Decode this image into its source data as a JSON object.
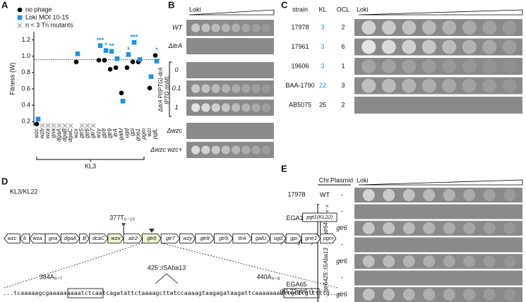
{
  "panel_labels": [
    "A",
    "B",
    "C",
    "D",
    "E"
  ],
  "chart_data": {
    "type": "scatter",
    "y_label": "Fitness (W)",
    "group_label": "KL3",
    "categories": [
      "wzc",
      "wzb",
      "wza",
      "gna",
      "dgaA",
      "dgaB",
      "dgaC",
      "wzx",
      "gtr5",
      "gtr6",
      "gtr7",
      "wzy",
      "gtr8",
      "gtr9",
      "itrA",
      "galU",
      "ugd",
      "gpi",
      "gne1",
      "pgm",
      "wzi",
      "pglL"
    ],
    "series": [
      {
        "name": "no phage",
        "color": "#000000",
        "marker": "circle",
        "values": [
          0.17,
          null,
          null,
          null,
          null,
          null,
          null,
          0.93,
          null,
          null,
          null,
          0.95,
          0.95,
          0.84,
          0.86,
          0.55,
          0.86,
          0.93,
          0.93,
          null,
          0.61,
          1.01
        ]
      },
      {
        "name": "Loki MOI 10-15",
        "color": "#1e90e8",
        "marker": "square",
        "values": [
          0.23,
          null,
          null,
          null,
          null,
          null,
          null,
          1.03,
          null,
          null,
          null,
          1.13,
          1.07,
          1.06,
          0.97,
          0.45,
          1.02,
          1.17,
          0.96,
          null,
          0.75,
          0.94
        ]
      },
      {
        "name": "n < 3 Tn mutants",
        "color": "#aaaaaa",
        "marker": "x",
        "values": [
          null,
          0.15,
          0.15,
          0.15,
          0.15,
          0.15,
          0.15,
          null,
          0.15,
          0.15,
          0.15,
          null,
          null,
          null,
          null,
          null,
          null,
          null,
          null,
          null,
          null,
          null
        ]
      }
    ],
    "significance": [
      null,
      null,
      null,
      null,
      null,
      null,
      null,
      null,
      null,
      null,
      null,
      "***",
      "*",
      "**",
      null,
      null,
      "*",
      "***",
      null,
      null,
      null,
      "*"
    ],
    "significance_color": "#1e90e8",
    "reference_line": 0.96,
    "ylim": [
      0.15,
      1.3
    ],
    "yticks": [
      0.2,
      0.4,
      0.6,
      0.8,
      {
        "value": 1,
        "label": "1.0"
      },
      1.2
    ]
  },
  "panel_b": {
    "header": "Loki",
    "rows": [
      "WT",
      "ΔitrA",
      "0",
      "0.1",
      "1",
      "Δwzc",
      "Δwzc wzc+"
    ],
    "side_label": [
      "ΔitrA P(IPTG)-itrA",
      "IPTG (mM):"
    ]
  },
  "panel_c": {
    "headers": [
      "strain",
      "KL",
      "OCL",
      "Loki"
    ],
    "rows": [
      [
        "17978",
        "3",
        "2"
      ],
      [
        "17961",
        "3",
        "6"
      ],
      [
        "19606",
        "3",
        "1"
      ],
      [
        "BAA-1790",
        "22",
        "3"
      ],
      [
        "AB5075",
        "25",
        "2"
      ]
    ],
    "kl_color": "#1e90e8"
  },
  "panel_d": {
    "title": "KL3/KL22",
    "genes": [
      "wzc",
      "b",
      "wza",
      "gna",
      "dgaA",
      "B",
      "dcaC",
      "wzx",
      "atr2",
      "gtr6",
      "gtr7",
      "wzy",
      "gtr8",
      "gtr9",
      "itrA",
      "galU",
      "ugd",
      "gpi",
      "gne1",
      "pgm"
    ],
    "insertion": "377T₆₋₁₀",
    "kl22_gene": "pgt1(KL22)",
    "sequence": "...tcaaaaagcgaaaaaaaaatctcaatcagatattctaaaagcttatccaaaagtaagagataagattcaaaaaaaattgttcgtttttg...",
    "sites": [
      "384A₉₋₇",
      "425::ISAba13",
      "440A₉₋₈"
    ]
  },
  "panel_e": {
    "headers": [
      "Chr.",
      "Plasmid",
      "Loki"
    ],
    "strains": [
      "17978",
      "EGA10",
      "(KL22gtr6⁻)",
      "EGA65",
      "(KL22gtr6⁻)"
    ],
    "chr": [
      "WT",
      "gtr6440A₉₋₈",
      "gtr6425::ISAba13"
    ],
    "plasmid": [
      "-",
      "-",
      "gtr6",
      "-",
      "gtr6",
      "-",
      "gtr6"
    ]
  }
}
